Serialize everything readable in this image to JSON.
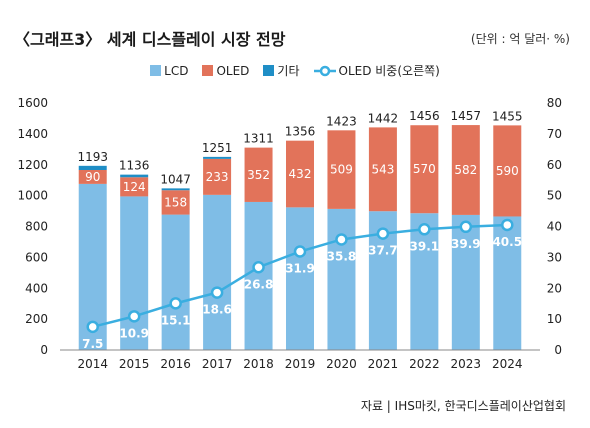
{
  "title": "〈그래프3〉 세계 디스플레이 시장 전망",
  "unit": "(단위 : 억 달러· %)",
  "source": "자료 | IHS마킷, 한국디스플레이산업협회",
  "legend": {
    "lcd": "LCD",
    "oled": "OLED",
    "other": "기타",
    "oled_share": "OLED 비중(오른쪽)"
  },
  "colors": {
    "lcd": "#7fbde6",
    "oled": "#e2735a",
    "other": "#1f8ec6",
    "line": "#3aaee0"
  },
  "chart_data": {
    "type": "bar",
    "stacked": true,
    "categories": [
      "2014",
      "2015",
      "2016",
      "2017",
      "2018",
      "2019",
      "2020",
      "2021",
      "2022",
      "2023",
      "2024"
    ],
    "totals": [
      1193,
      1136,
      1047,
      1251,
      1311,
      1356,
      1423,
      1442,
      1456,
      1457,
      1455
    ],
    "series": [
      {
        "name": "LCD",
        "values": [
          1076,
          995,
          877,
          1005,
          959,
          924,
          914,
          899,
          886,
          875,
          865
        ]
      },
      {
        "name": "OLED",
        "values": [
          90,
          124,
          158,
          233,
          352,
          432,
          509,
          543,
          570,
          582,
          590
        ]
      },
      {
        "name": "기타",
        "values": [
          27,
          17,
          12,
          13,
          0,
          0,
          0,
          0,
          0,
          0,
          0
        ]
      }
    ],
    "line_series": {
      "name": "OLED 비중(오른쪽)",
      "axis": "right",
      "values": [
        7.5,
        10.9,
        15.1,
        18.6,
        26.8,
        31.9,
        35.8,
        37.7,
        39.1,
        39.9,
        40.5
      ]
    },
    "yticks_left": [
      0,
      200,
      400,
      600,
      800,
      1000,
      1200,
      1400,
      1600
    ],
    "yticks_right": [
      0,
      10,
      20,
      30,
      40,
      50,
      60,
      70,
      80
    ],
    "ylim": [
      0,
      1600
    ],
    "ylim_right": [
      0,
      80
    ],
    "grid": false,
    "legend_position": "top-center"
  }
}
